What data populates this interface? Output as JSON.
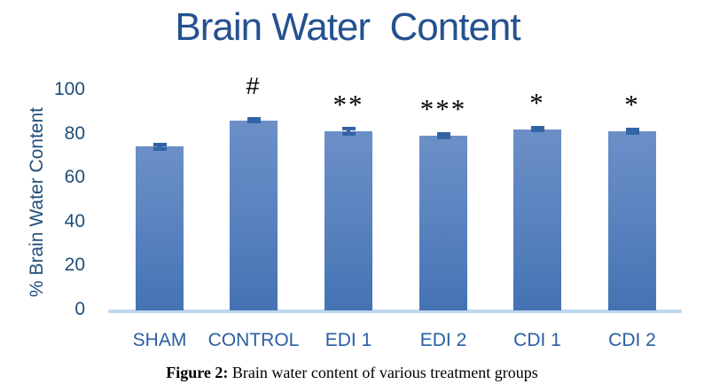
{
  "chart_data": {
    "type": "bar",
    "title": "Brain Water  Content",
    "xlabel": "",
    "ylabel": "% Brain Water Content",
    "categories": [
      "SHAM",
      "CONTROL",
      "EDI 1",
      "EDI 2",
      "CDI 1",
      "CDI 2"
    ],
    "values": [
      74,
      86,
      81,
      79,
      82,
      81
    ],
    "errors": [
      2,
      1.5,
      2,
      1.5,
      1.5,
      1.5
    ],
    "significance": [
      "",
      "#",
      "**",
      "***",
      "*",
      "*"
    ],
    "yticks": [
      0,
      20,
      40,
      60,
      80,
      100
    ],
    "ylim": [
      0,
      100
    ],
    "grid": false,
    "legend": "none",
    "colors": {
      "bar_top": "#6C8FC7",
      "bar_bottom": "#4473B3",
      "error_bar": "#3464A6",
      "axis_line": "#BDD7EE",
      "title_text": "#24518F",
      "ytick_text": "#1F4E79",
      "xtick_text": "#2A5DA3",
      "significance_text": "#000000",
      "caption_text": "#000000"
    }
  },
  "figure": {
    "caption_prefix": "Figure 2:",
    "caption_text": " Brain water content of various treatment groups"
  }
}
